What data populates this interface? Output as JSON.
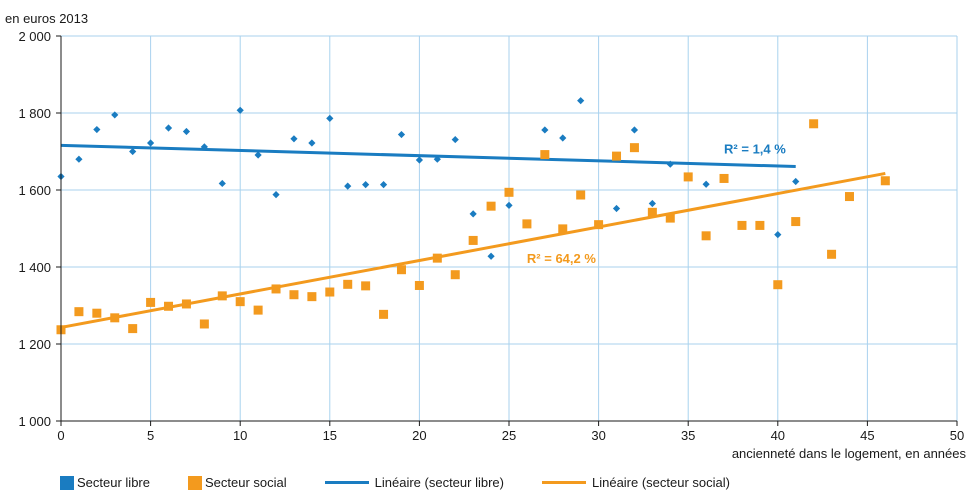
{
  "chart_data": {
    "type": "scatter",
    "y_unit_label": "en euros 2013",
    "xlabel": "ancienneté dans le logement, en années",
    "xlim": [
      0,
      50
    ],
    "ylim": [
      1000,
      2000
    ],
    "x_ticks": [
      0,
      5,
      10,
      15,
      20,
      25,
      30,
      35,
      40,
      45,
      50
    ],
    "x_tick_labels": [
      "0",
      "5",
      "10",
      "15",
      "20",
      "25",
      "30",
      "35",
      "40",
      "45",
      "50"
    ],
    "y_ticks": [
      1000,
      1200,
      1400,
      1600,
      1800,
      2000
    ],
    "y_tick_labels": [
      "1 000",
      "1 200",
      "1 400",
      "1 600",
      "1 800",
      "2 000"
    ],
    "grid": true,
    "legend_position": "bottom",
    "series": [
      {
        "name": "Secteur libre",
        "color": "#1a7cc1",
        "marker": "diamond",
        "points": [
          [
            0,
            1635
          ],
          [
            1,
            1680
          ],
          [
            2,
            1757
          ],
          [
            3,
            1795
          ],
          [
            4,
            1700
          ],
          [
            5,
            1722
          ],
          [
            6,
            1761
          ],
          [
            7,
            1752
          ],
          [
            8,
            1712
          ],
          [
            9,
            1617
          ],
          [
            10,
            1807
          ],
          [
            11,
            1691
          ],
          [
            12,
            1588
          ],
          [
            13,
            1733
          ],
          [
            14,
            1722
          ],
          [
            15,
            1786
          ],
          [
            16,
            1610
          ],
          [
            17,
            1614
          ],
          [
            18,
            1614
          ],
          [
            19,
            1744
          ],
          [
            20,
            1678
          ],
          [
            21,
            1680
          ],
          [
            22,
            1731
          ],
          [
            23,
            1538
          ],
          [
            24,
            1428
          ],
          [
            25,
            1560
          ],
          [
            27,
            1756
          ],
          [
            28,
            1735
          ],
          [
            29,
            1832
          ],
          [
            31,
            1552
          ],
          [
            32,
            1756
          ],
          [
            33,
            1565
          ],
          [
            34,
            1667
          ],
          [
            36,
            1615
          ],
          [
            40,
            1484
          ],
          [
            41,
            1622
          ]
        ]
      },
      {
        "name": "Secteur social",
        "color": "#f39a1e",
        "marker": "square",
        "points": [
          [
            0,
            1237
          ],
          [
            1,
            1284
          ],
          [
            2,
            1280
          ],
          [
            3,
            1268
          ],
          [
            4,
            1240
          ],
          [
            5,
            1308
          ],
          [
            6,
            1298
          ],
          [
            7,
            1304
          ],
          [
            8,
            1252
          ],
          [
            9,
            1325
          ],
          [
            10,
            1310
          ],
          [
            11,
            1288
          ],
          [
            12,
            1343
          ],
          [
            13,
            1328
          ],
          [
            14,
            1323
          ],
          [
            15,
            1335
          ],
          [
            16,
            1355
          ],
          [
            17,
            1351
          ],
          [
            18,
            1277
          ],
          [
            19,
            1393
          ],
          [
            20,
            1352
          ],
          [
            21,
            1423
          ],
          [
            22,
            1380
          ],
          [
            23,
            1469
          ],
          [
            24,
            1558
          ],
          [
            25,
            1594
          ],
          [
            26,
            1512
          ],
          [
            27,
            1692
          ],
          [
            28,
            1499
          ],
          [
            29,
            1587
          ],
          [
            30,
            1510
          ],
          [
            31,
            1688
          ],
          [
            32,
            1710
          ],
          [
            33,
            1542
          ],
          [
            34,
            1527
          ],
          [
            35,
            1634
          ],
          [
            36,
            1481
          ],
          [
            37,
            1630
          ],
          [
            38,
            1508
          ],
          [
            39,
            1508
          ],
          [
            40,
            1354
          ],
          [
            41,
            1518
          ],
          [
            42,
            1772
          ],
          [
            43,
            1433
          ],
          [
            44,
            1583
          ],
          [
            46,
            1624
          ]
        ]
      }
    ],
    "trendlines": [
      {
        "name": "Linéaire (secteur libre)",
        "color": "#1a7cc1",
        "x": [
          0,
          41
        ],
        "y": [
          1716,
          1661
        ],
        "r2_label": "R² = 1,4 %",
        "r2_at": [
          37,
          1695
        ]
      },
      {
        "name": "Linéaire (secteur social)",
        "color": "#f39a1e",
        "x": [
          0,
          46
        ],
        "y": [
          1243,
          1643
        ],
        "r2_label": "R² = 64,2 %",
        "r2_at": [
          26,
          1410
        ]
      }
    ]
  }
}
